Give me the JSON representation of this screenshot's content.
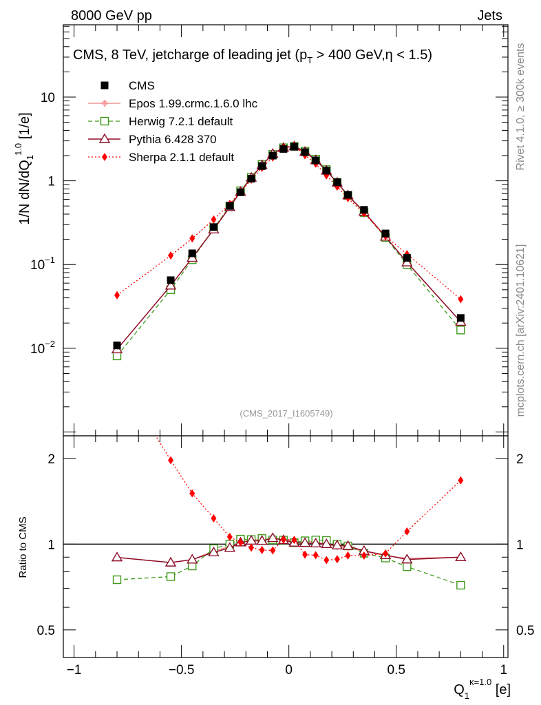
{
  "header": {
    "left_label": "8000 GeV pp",
    "right_label": "Jets"
  },
  "side_labels": {
    "rivet": "Rivet 4.1.0, ≥ 300k events",
    "mcplots": "mcplots.cern.ch [arXiv:2401.10621]"
  },
  "chart_data": {
    "type": "scatter",
    "title": "CMS, 8 TeV, jetcharge of leading jet (p_T > 400 GeV, η < 1.5)",
    "title_parts": {
      "a": "CMS, 8 TeV, jetcharge of leading jet (p",
      "sub": "T",
      "b": " > 400 GeV,η < 1.5)"
    },
    "analysis_tag": "(CMS_2017_I1605749)",
    "ylabel": {
      "main": "1/N dN/dQ",
      "sub": "1",
      "sup": "1.0",
      "unit": " [1/e]"
    },
    "xlabel": {
      "main": "Q",
      "sub": "1",
      "sup": "κ=1.0",
      "unit": " [e]"
    },
    "ratio_ylabel": "Ratio to CMS",
    "xlim": [
      -1.05,
      1.02
    ],
    "ylim_main": [
      0.0009,
      73
    ],
    "ylim_ratio": [
      0.4,
      2.4
    ],
    "x_ticks": [
      -1,
      -0.5,
      0,
      0.5,
      1
    ],
    "x_tick_labels": [
      "−1",
      "−0.5",
      "0",
      "0.5",
      "1"
    ],
    "y_main_ticks": [
      {
        "base": "10",
        "exp": "−2"
      },
      {
        "base": "10",
        "exp": "−1"
      },
      {
        "base": "1",
        "exp": ""
      },
      {
        "base": "10",
        "exp": ""
      }
    ],
    "y_ratio_ticks": [
      "0.5",
      "1",
      "2"
    ],
    "x": [
      -0.8,
      -0.55,
      -0.45,
      -0.35,
      -0.275,
      -0.225,
      -0.175,
      -0.125,
      -0.075,
      -0.025,
      0.025,
      0.075,
      0.125,
      0.175,
      0.225,
      0.275,
      0.35,
      0.45,
      0.55,
      0.8
    ],
    "series": [
      {
        "name": "CMS",
        "key": "cms",
        "color": "#000000",
        "values": [
          0.0108,
          0.065,
          0.136,
          0.28,
          0.5,
          0.73,
          1.06,
          1.5,
          2.0,
          2.4,
          2.55,
          2.2,
          1.75,
          1.32,
          0.96,
          0.68,
          0.45,
          0.235,
          0.12,
          0.023
        ]
      },
      {
        "name": "Epos 1.99.crmc.1.6.0 lhc",
        "key": "epos",
        "color": "#f08080",
        "values": [
          0.0097,
          0.056,
          0.12,
          0.265,
          0.49,
          0.74,
          1.1,
          1.55,
          2.1,
          2.5,
          2.6,
          2.25,
          1.78,
          1.32,
          0.94,
          0.66,
          0.425,
          0.214,
          0.107,
          0.0207
        ]
      },
      {
        "name": "Herwig 7.2.1 default",
        "key": "herwig",
        "color": "#3f9a1a",
        "values": [
          0.0081,
          0.05,
          0.114,
          0.27,
          0.5,
          0.76,
          1.1,
          1.57,
          2.07,
          2.48,
          2.58,
          2.26,
          1.81,
          1.36,
          0.96,
          0.67,
          0.418,
          0.21,
          0.1,
          0.0165
        ]
      },
      {
        "name": "Pythia 6.428 370",
        "key": "pythia",
        "color": "#8b0d27",
        "values": [
          0.0097,
          0.056,
          0.12,
          0.262,
          0.485,
          0.74,
          1.09,
          1.54,
          2.1,
          2.48,
          2.58,
          2.22,
          1.76,
          1.32,
          0.95,
          0.67,
          0.426,
          0.215,
          0.106,
          0.0207
        ]
      },
      {
        "name": "Sherpa 2.1.1 default",
        "key": "sherpa",
        "color": "#ff0000",
        "values": [
          0.043,
          0.128,
          0.205,
          0.345,
          0.53,
          0.74,
          1.03,
          1.43,
          1.9,
          2.49,
          2.64,
          2.02,
          1.6,
          1.16,
          0.85,
          0.62,
          0.41,
          0.218,
          0.133,
          0.0385
        ]
      }
    ]
  }
}
